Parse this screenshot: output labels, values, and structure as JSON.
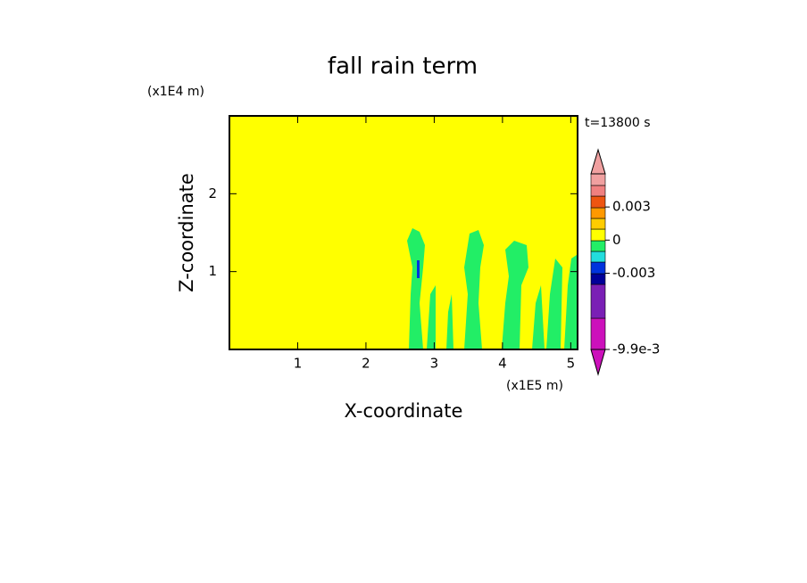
{
  "chart_data": {
    "type": "contour",
    "title": "fall rain term",
    "x_label": "X-coordinate",
    "y_label": "Z-coordinate",
    "x_unit": "(x1E5 m)",
    "y_unit": "(x1E4 m)",
    "annotation": "t=13800 s",
    "xlim": [
      0,
      5.1
    ],
    "xticks": [
      1,
      2,
      3,
      4,
      5
    ],
    "ylim": [
      0,
      3
    ],
    "yticks": [
      1,
      2
    ],
    "background_color": "#ffff00",
    "feature_color": "#22ee66",
    "colorbar": {
      "lim": [
        -0.0099,
        0.006
      ],
      "ticks": [
        0.003,
        0,
        -0.003,
        {
          "value": -0.0099,
          "label": "-9.9e-3"
        }
      ],
      "colors": [
        "#cc11bb",
        "#7a1fb5",
        "#000099",
        "#0033dd",
        "#22dddd",
        "#22ee66",
        "#ffff00",
        "#ffcc00",
        "#ff9900",
        "#ee5511",
        "#f08080",
        "#f0a0a0"
      ]
    }
  }
}
